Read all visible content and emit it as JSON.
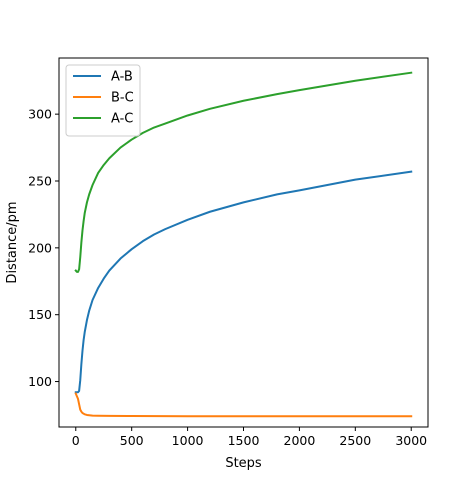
{
  "chart_data": {
    "type": "line",
    "title": "",
    "xlabel": "Steps",
    "ylabel": "Distance/pm",
    "xlim": [
      -150,
      3150
    ],
    "ylim": [
      66,
      342
    ],
    "xticks": [
      0,
      500,
      1000,
      1500,
      2000,
      2500,
      3000
    ],
    "yticks": [
      100,
      150,
      200,
      250,
      300
    ],
    "legend_position": "upper-left",
    "grid": false,
    "series": [
      {
        "name": "A-B",
        "color": "#1f77b4",
        "x": [
          0,
          20,
          30,
          40,
          50,
          60,
          70,
          80,
          100,
          120,
          150,
          200,
          250,
          300,
          400,
          500,
          600,
          700,
          800,
          1000,
          1200,
          1500,
          1800,
          2000,
          2500,
          3000
        ],
        "y": [
          92,
          92,
          93,
          101,
          113,
          123,
          131,
          137,
          146,
          153,
          161,
          170,
          177,
          183,
          192,
          199,
          205,
          210,
          214,
          221,
          227,
          234,
          240,
          243,
          251,
          257
        ]
      },
      {
        "name": "B-C",
        "color": "#ff7f0e",
        "x": [
          0,
          10,
          20,
          30,
          40,
          50,
          60,
          80,
          100,
          150,
          200,
          300,
          500,
          1000,
          1500,
          2000,
          2500,
          3000
        ],
        "y": [
          91,
          89,
          87,
          83,
          79,
          77.5,
          76.5,
          75.5,
          75,
          74.5,
          74.4,
          74.3,
          74.2,
          74,
          74,
          74,
          74,
          74
        ]
      },
      {
        "name": "A-C",
        "color": "#2ca02c",
        "x": [
          0,
          10,
          20,
          30,
          40,
          50,
          60,
          70,
          80,
          100,
          120,
          150,
          200,
          250,
          300,
          400,
          500,
          600,
          700,
          800,
          1000,
          1200,
          1500,
          1800,
          2000,
          2500,
          3000
        ],
        "y": [
          183,
          182,
          182,
          184,
          193,
          204,
          213,
          220,
          226,
          234,
          240,
          247,
          256,
          262,
          267,
          275,
          281,
          286,
          290,
          293,
          299,
          304,
          310,
          315,
          318,
          325,
          331
        ]
      }
    ]
  }
}
